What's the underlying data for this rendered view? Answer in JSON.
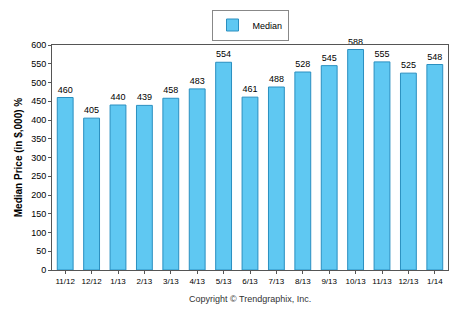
{
  "chart_data": {
    "type": "bar",
    "y_label": "Median Price (in $,000) %",
    "categories": [
      "11/12",
      "12/12",
      "1/13",
      "2/13",
      "3/13",
      "4/13",
      "5/13",
      "6/13",
      "7/13",
      "8/13",
      "9/13",
      "10/13",
      "11/13",
      "12/13",
      "1/14"
    ],
    "series": [
      {
        "name": "Median",
        "color": "#5fc8f2",
        "values": [
          460,
          405,
          440,
          439,
          458,
          483,
          554,
          461,
          488,
          528,
          545,
          588,
          555,
          525,
          548
        ]
      }
    ],
    "ylim": [
      0,
      600
    ],
    "yticks": [
      0,
      50,
      100,
      150,
      200,
      250,
      300,
      350,
      400,
      450,
      500,
      550,
      600
    ],
    "grid": false,
    "legend": "top",
    "data_labels": true,
    "annotations": [
      "Copyright © Trendgraphix, Inc."
    ]
  }
}
